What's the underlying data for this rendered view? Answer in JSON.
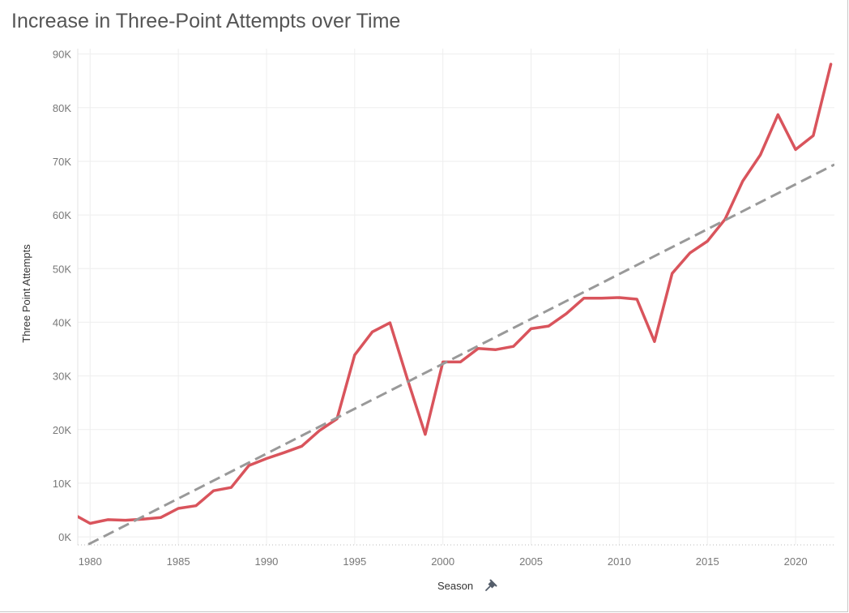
{
  "chart_data": {
    "type": "line",
    "title": "Increase in Three-Point Attempts over Time",
    "xlabel": "Season",
    "ylabel": "Three Point Attempts",
    "xlim": [
      1979.3,
      2022.2
    ],
    "ylim": [
      -1500,
      91000
    ],
    "x_ticks": [
      1980,
      1985,
      1990,
      1995,
      2000,
      2005,
      2010,
      2015,
      2020
    ],
    "y_ticks": [
      0,
      10000,
      20000,
      30000,
      40000,
      50000,
      60000,
      70000,
      80000,
      90000
    ],
    "y_tick_labels": [
      "0K",
      "10K",
      "20K",
      "30K",
      "40K",
      "50K",
      "60K",
      "70K",
      "80K",
      "90K"
    ],
    "grid": true,
    "legend": "none",
    "pin_icon": "pin-icon",
    "series": [
      {
        "color": "#d9545c",
        "x": [
          1979,
          1980,
          1981,
          1982,
          1983,
          1984,
          1985,
          1986,
          1987,
          1988,
          1989,
          1990,
          1991,
          1992,
          1993,
          1994,
          1995,
          1996,
          1997,
          1998,
          1999,
          2000,
          2001,
          2002,
          2003,
          2004,
          2005,
          2006,
          2007,
          2008,
          2009,
          2010,
          2011,
          2012,
          2013,
          2014,
          2015,
          2016,
          2017,
          2018,
          2019,
          2020,
          2021,
          2022
        ],
        "values": [
          4300,
          2500,
          3200,
          3100,
          3300,
          3600,
          5300,
          5800,
          8600,
          9200,
          13300,
          14600,
          15700,
          16900,
          19800,
          22000,
          33900,
          38200,
          39900,
          29300,
          19100,
          32600,
          32600,
          35100,
          34900,
          35500,
          38800,
          39300,
          41600,
          44500,
          44500,
          44600,
          44300,
          36400,
          49100,
          52900,
          55100,
          59200,
          66300,
          71200,
          78700,
          72200,
          74800,
          88100
        ]
      },
      {
        "name": "trend",
        "color": "#999999",
        "dashed": true,
        "x": [
          1979.9,
          2022.2
        ],
        "values": [
          -1400,
          69400
        ]
      }
    ]
  }
}
